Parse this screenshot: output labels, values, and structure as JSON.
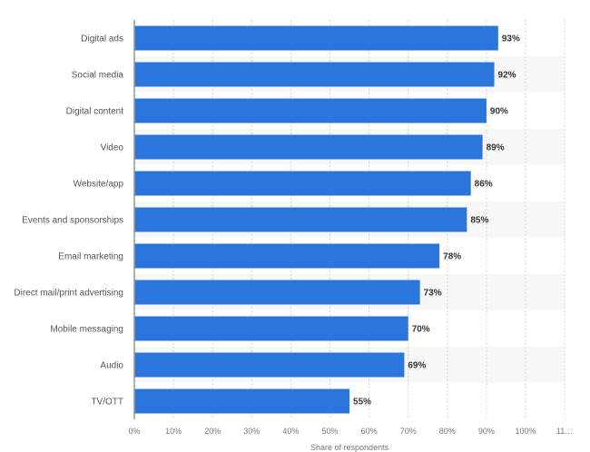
{
  "chart_data": {
    "type": "bar",
    "orientation": "horizontal",
    "categories": [
      "Digital ads",
      "Social media",
      "Digital content",
      "Video",
      "Website/app",
      "Events and sponsorships",
      "Email marketing",
      "Direct mail/print advertising",
      "Mobile messaging",
      "Audio",
      "TV/OTT"
    ],
    "values": [
      93,
      92,
      90,
      89,
      86,
      85,
      78,
      73,
      70,
      69,
      55
    ],
    "value_labels": [
      "93%",
      "92%",
      "90%",
      "89%",
      "86%",
      "85%",
      "78%",
      "73%",
      "70%",
      "69%",
      "55%"
    ],
    "xlabel": "Share of respondents",
    "xlim": [
      0,
      110
    ],
    "x_ticks": [
      "0%",
      "10%",
      "20%",
      "30%",
      "40%",
      "50%",
      "60%",
      "70%",
      "80%",
      "90%",
      "100%",
      "11…"
    ],
    "x_tick_values": [
      0,
      10,
      20,
      30,
      40,
      50,
      60,
      70,
      80,
      90,
      100,
      110
    ],
    "grid": true,
    "bar_color": "#2a76dd",
    "band_color": "#f7f7f7"
  }
}
